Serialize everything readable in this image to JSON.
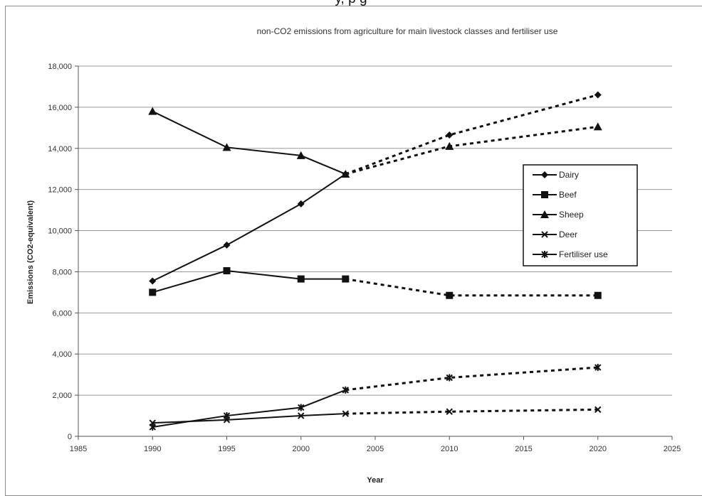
{
  "page": {
    "top_text": "y,        p                                g"
  },
  "chart_data": {
    "type": "line",
    "title": "non-CO2 emissions from agriculture for main livestock classes and fertiliser use",
    "xlabel": "Year",
    "ylabel": "Emissions (CO2-equivalent)",
    "xlim": [
      1985,
      2025
    ],
    "ylim": [
      0,
      18000
    ],
    "x_ticks": [
      1985,
      1990,
      1995,
      2000,
      2005,
      2010,
      2015,
      2020,
      2025
    ],
    "x_tick_labels": [
      "1985",
      "1990",
      "1995",
      "2000",
      "2005",
      "2010",
      "2015",
      "2020",
      "2025"
    ],
    "y_ticks": [
      0,
      2000,
      4000,
      6000,
      8000,
      10000,
      12000,
      14000,
      16000,
      18000
    ],
    "y_tick_labels": [
      "0",
      "2,000",
      "4,000",
      "6,000",
      "8,000",
      "10,000",
      "12,000",
      "14,000",
      "16,000",
      "18,000"
    ],
    "grid": "horizontal",
    "legend_position": "right",
    "solid_until": 2003,
    "series": [
      {
        "name": "Dairy",
        "marker": "diamond",
        "x": [
          1990,
          1995,
          2000,
          2003,
          2010,
          2020
        ],
        "y": [
          7550,
          9300,
          11300,
          12750,
          14650,
          16600
        ]
      },
      {
        "name": "Beef",
        "marker": "square",
        "x": [
          1990,
          1995,
          2000,
          2003,
          2010,
          2020
        ],
        "y": [
          7000,
          8050,
          7650,
          7650,
          6850,
          6850
        ]
      },
      {
        "name": "Sheep",
        "marker": "triangle",
        "x": [
          1990,
          1995,
          2000,
          2003,
          2010,
          2020
        ],
        "y": [
          15800,
          14050,
          13650,
          12750,
          14100,
          15050
        ]
      },
      {
        "name": "Deer",
        "marker": "x",
        "x": [
          1990,
          1995,
          2000,
          2003,
          2010,
          2020
        ],
        "y": [
          650,
          800,
          1000,
          1100,
          1200,
          1300
        ]
      },
      {
        "name": "Fertiliser use",
        "marker": "star",
        "x": [
          1990,
          1995,
          2000,
          2003,
          2010,
          2020
        ],
        "y": [
          450,
          1000,
          1400,
          2250,
          2850,
          3350
        ]
      }
    ]
  }
}
